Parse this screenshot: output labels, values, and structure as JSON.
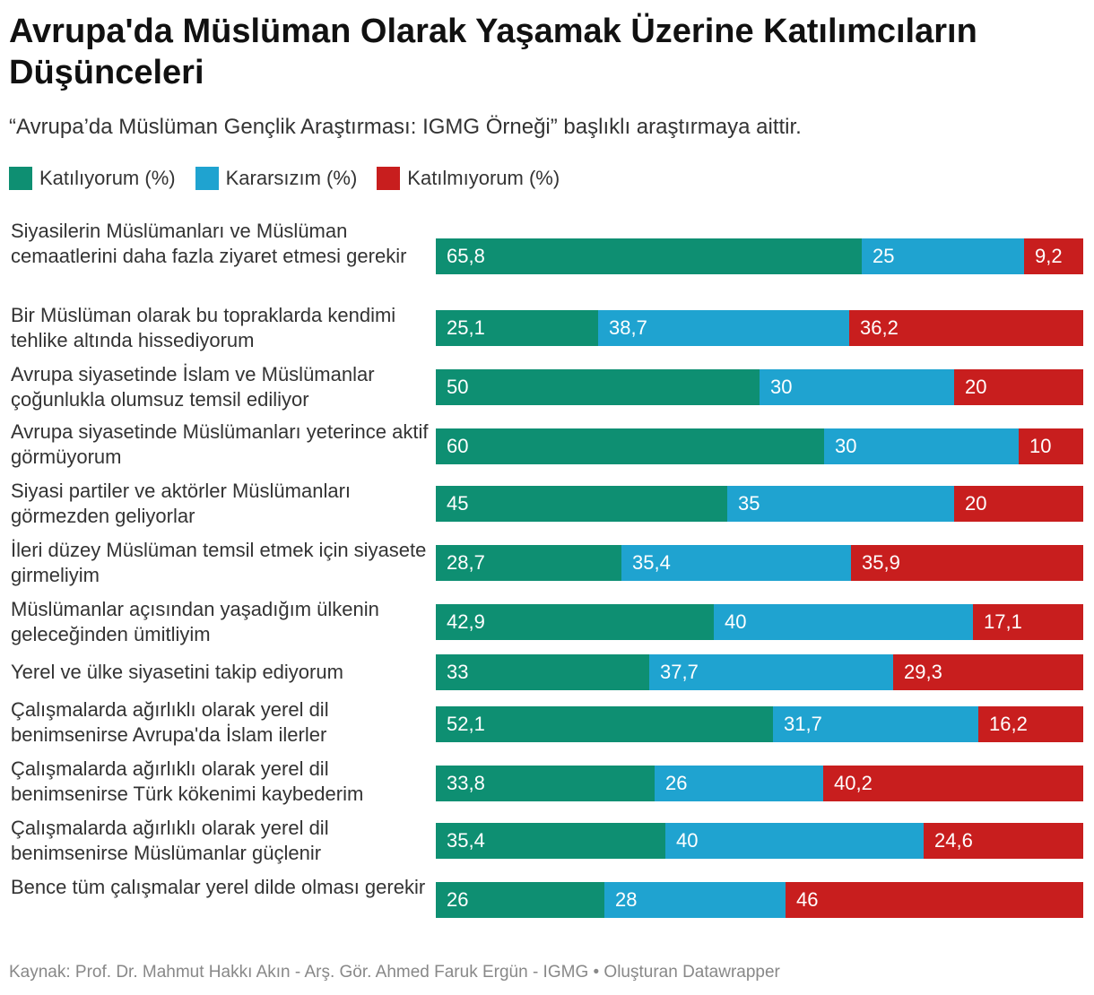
{
  "title": "Avrupa'da Müslüman Olarak Yaşamak Üzerine Katılımcıların Düşünceleri",
  "subtitle": "“Avrupa’da Müslüman Gençlik Araştırması: IGMG Örneği” başlıklı araştırmaya aittir.",
  "source": "Kaynak: Prof. Dr. Mahmut Hakkı Akın - Arş. Gör. Ahmed Faruk Ergün - IGMG • Oluşturan Datawrapper",
  "chart_data": {
    "type": "bar",
    "orientation": "horizontal",
    "stacked": true,
    "xlim": [
      0,
      100
    ],
    "categories": [
      "Siyasilerin Müslümanları ve Müslüman cemaatlerini daha fazla ziyaret etmesi gerekir",
      "Bir Müslüman olarak bu topraklarda kendimi tehlike altında hissediyorum",
      "Avrupa siyasetinde İslam ve Müslümanlar çoğunlukla olumsuz temsil ediliyor",
      "Avrupa siyasetinde Müslümanları yeterince aktif görmüyorum",
      "Siyasi partiler ve aktörler Müslümanları görmezden geliyorlar",
      "İleri düzey Müslüman temsil etmek için siyasete girmeliyim",
      "Müslümanlar açısından yaşadığım ülkenin geleceğinden ümitliyim",
      "Yerel ve ülke siyasetini takip ediyorum",
      "Çalışmalarda ağırlıklı olarak yerel dil benimsenirse Avrupa'da İslam ilerler",
      "Çalışmalarda ağırlıklı olarak yerel dil benimsenirse Türk kökenimi kaybederim",
      "Çalışmalarda ağırlıklı olarak yerel dil benimsenirse Müslümanlar güçlenir",
      "Bence tüm çalışmalar yerel dilde olması gerekir"
    ],
    "series": [
      {
        "name": "Katılıyorum (%)",
        "color": "#0e8f72",
        "values": [
          65.8,
          25.1,
          50,
          60,
          45,
          28.7,
          42.9,
          33,
          52.1,
          33.8,
          35.4,
          26
        ],
        "labels": [
          "65,8",
          "25,1",
          "50",
          "60",
          "45",
          "28,7",
          "42,9",
          "33",
          "52,1",
          "33,8",
          "35,4",
          "26"
        ]
      },
      {
        "name": "Kararsızım (%)",
        "color": "#1fa3d0",
        "values": [
          25,
          38.7,
          30,
          30,
          35,
          35.4,
          40,
          37.7,
          31.7,
          26,
          40,
          28
        ],
        "labels": [
          "25",
          "38,7",
          "30",
          "30",
          "35",
          "35,4",
          "40",
          "37,7",
          "31,7",
          "26",
          "40",
          "28"
        ]
      },
      {
        "name": "Katılmıyorum (%)",
        "color": "#c81e1e",
        "values": [
          9.2,
          36.2,
          20,
          10,
          20,
          35.9,
          17.1,
          29.3,
          16.2,
          40.2,
          24.6,
          46
        ],
        "labels": [
          "9,2",
          "36,2",
          "20",
          "10",
          "20",
          "35,9",
          "17,1",
          "29,3",
          "16,2",
          "40,2",
          "24,6",
          "46"
        ]
      }
    ]
  }
}
